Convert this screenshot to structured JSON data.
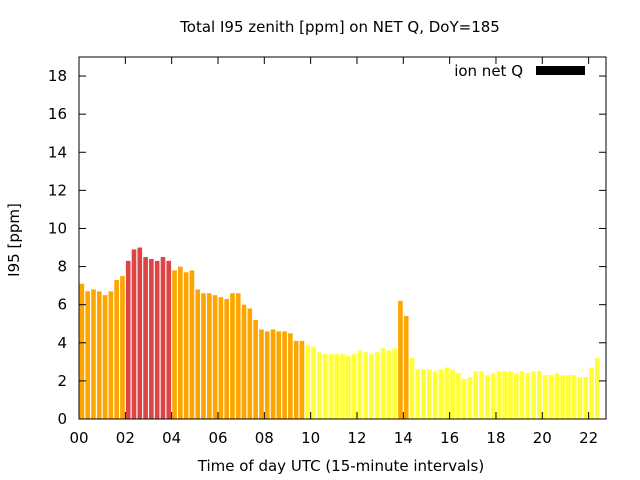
{
  "chart_data": {
    "type": "bar",
    "title": "Total I95 zenith [ppm] on NET Q, DoY=185",
    "xlabel": "Time of day UTC (15-minute intervals)",
    "ylabel": "I95 [ppm]",
    "ylim": [
      0,
      19
    ],
    "xlim": [
      0,
      22.75
    ],
    "y_ticks": [
      "0",
      "2",
      "4",
      "6",
      "8",
      "10",
      "12",
      "14",
      "16",
      "18"
    ],
    "x_ticks": [
      "00",
      "02",
      "04",
      "06",
      "08",
      "10",
      "12",
      "14",
      "16",
      "18",
      "20",
      "22"
    ],
    "legend": {
      "label": "ion net Q",
      "position": "top-right",
      "color": "#000000"
    },
    "bar_step_hours": 0.25,
    "colors": {
      "high": "#dd4444",
      "mid": "#ffa500",
      "low": "#ffff33"
    },
    "values": [
      7.1,
      6.7,
      6.8,
      6.7,
      6.5,
      6.7,
      7.3,
      7.5,
      8.3,
      8.9,
      9.0,
      8.5,
      8.4,
      8.3,
      8.5,
      8.3,
      7.8,
      8.0,
      7.7,
      7.8,
      6.8,
      6.6,
      6.6,
      6.5,
      6.4,
      6.3,
      6.6,
      6.6,
      6.0,
      5.8,
      5.2,
      4.7,
      4.6,
      4.7,
      4.6,
      4.6,
      4.5,
      4.1,
      4.1,
      3.9,
      3.8,
      3.5,
      3.4,
      3.4,
      3.4,
      3.4,
      3.3,
      3.4,
      3.6,
      3.5,
      3.4,
      3.5,
      3.7,
      3.6,
      3.7,
      6.2,
      5.4,
      3.2,
      2.6,
      2.6,
      2.6,
      2.5,
      2.6,
      2.7,
      2.6,
      2.4,
      2.1,
      2.2,
      2.5,
      2.5,
      2.3,
      2.4,
      2.5,
      2.5,
      2.5,
      2.4,
      2.5,
      2.4,
      2.5,
      2.5,
      2.3,
      2.3,
      2.4,
      2.3,
      2.3,
      2.3,
      2.2,
      2.2,
      2.7,
      3.2
    ],
    "value_colors": [
      "mid",
      "mid",
      "mid",
      "mid",
      "mid",
      "mid",
      "mid",
      "mid",
      "high",
      "high",
      "high",
      "high",
      "high",
      "high",
      "high",
      "high",
      "mid",
      "mid",
      "mid",
      "mid",
      "mid",
      "mid",
      "mid",
      "mid",
      "mid",
      "mid",
      "mid",
      "mid",
      "mid",
      "mid",
      "mid",
      "mid",
      "mid",
      "mid",
      "mid",
      "mid",
      "mid",
      "mid",
      "mid",
      "low",
      "low",
      "low",
      "low",
      "low",
      "low",
      "low",
      "low",
      "low",
      "low",
      "low",
      "low",
      "low",
      "low",
      "low",
      "low",
      "mid",
      "mid",
      "low",
      "low",
      "low",
      "low",
      "low",
      "low",
      "low",
      "low",
      "low",
      "low",
      "low",
      "low",
      "low",
      "low",
      "low",
      "low",
      "low",
      "low",
      "low",
      "low",
      "low",
      "low",
      "low",
      "low",
      "low",
      "low",
      "low",
      "low",
      "low",
      "low",
      "low",
      "low",
      "low"
    ]
  }
}
